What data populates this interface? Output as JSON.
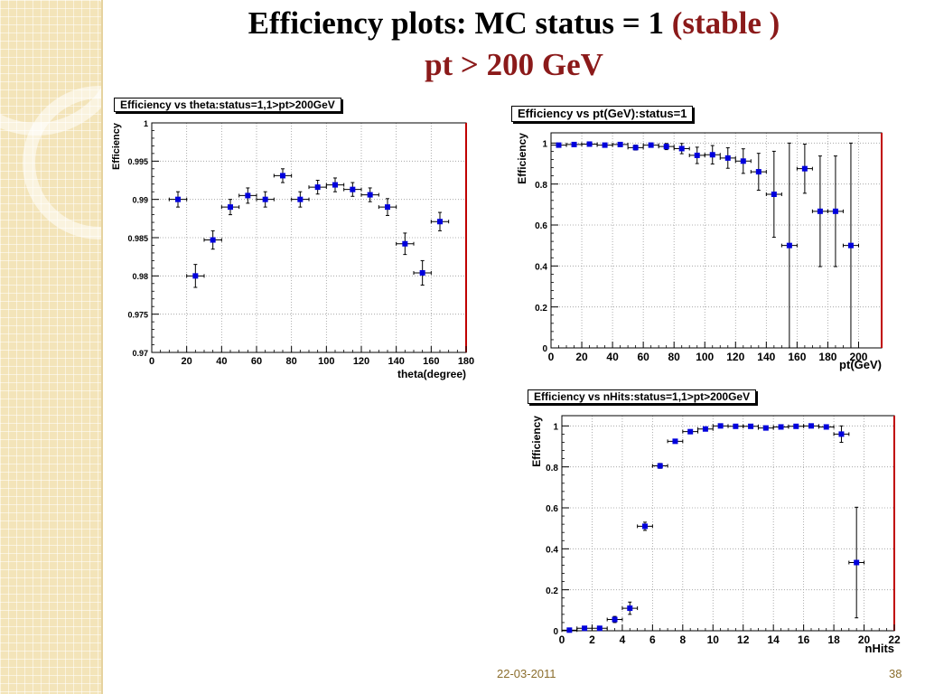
{
  "slide": {
    "title_main": "Efficiency plots: MC status = 1 ",
    "title_accent": "(stable )",
    "title_line2": "pt > 200 GeV",
    "footer_date": "22-03-2011",
    "footer_page": "38"
  },
  "colors": {
    "marker": "#0000dd",
    "title_accent": "#8b1a1a",
    "frame_right": "#c00000",
    "sidebar": "#f3e4b9"
  },
  "chart_data": [
    {
      "id": "theta",
      "type": "scatter",
      "title": "Efficiency vs theta:status=1,1>pt>200GeV",
      "xlabel": "theta(degree)",
      "ylabel": "Efficiency",
      "xlim": [
        0,
        180
      ],
      "ylim": [
        0.97,
        1.0
      ],
      "grid": true,
      "xticks": [
        0,
        20,
        40,
        60,
        80,
        100,
        120,
        140,
        160,
        180
      ],
      "xtick_labels": [
        "0",
        "20",
        "40",
        "60",
        "80",
        "100",
        "120",
        "140",
        "160",
        "180"
      ],
      "yticks": [
        0.97,
        0.975,
        0.98,
        0.985,
        0.99,
        0.995,
        1.0
      ],
      "ytick_labels": [
        "0.97",
        "0.975",
        "0.98",
        "0.985",
        "0.99",
        "0.995",
        "1"
      ],
      "x_halfwidth": 5,
      "x": [
        15,
        25,
        35,
        45,
        55,
        65,
        75,
        85,
        95,
        105,
        115,
        125,
        135,
        145,
        155,
        165
      ],
      "y": [
        0.99,
        0.98,
        0.9847,
        0.989,
        0.9905,
        0.99,
        0.9931,
        0.99,
        0.9916,
        0.9919,
        0.9913,
        0.9906,
        0.989,
        0.9842,
        0.9804,
        0.9871
      ],
      "yerr": [
        0.001,
        0.0015,
        0.0012,
        0.001,
        0.001,
        0.001,
        0.0009,
        0.001,
        0.0009,
        0.0009,
        0.0009,
        0.0009,
        0.0011,
        0.0014,
        0.0016,
        0.0012
      ]
    },
    {
      "id": "pt",
      "type": "scatter",
      "title": "Efficiency vs pt(GeV):status=1",
      "xlabel": "pt(GeV)",
      "ylabel": "Efficiency",
      "xlim": [
        0,
        215
      ],
      "ylim": [
        0,
        1.05
      ],
      "grid": true,
      "xticks": [
        0,
        20,
        40,
        60,
        80,
        100,
        120,
        140,
        160,
        180,
        200
      ],
      "xtick_labels": [
        "0",
        "20",
        "40",
        "60",
        "80",
        "100",
        "120",
        "140",
        "160",
        "180",
        "200"
      ],
      "yticks": [
        0,
        0.2,
        0.4,
        0.6,
        0.8,
        1.0
      ],
      "ytick_labels": [
        "0",
        "0.2",
        "0.4",
        "0.6",
        "0.8",
        "1"
      ],
      "x_halfwidth": 5,
      "x": [
        5,
        15,
        25,
        35,
        45,
        55,
        65,
        75,
        85,
        95,
        105,
        115,
        125,
        135,
        145,
        155,
        165,
        175,
        185,
        195
      ],
      "y": [
        0.99,
        0.993,
        0.995,
        0.99,
        0.993,
        0.978,
        0.99,
        0.983,
        0.973,
        0.94,
        0.943,
        0.927,
        0.912,
        0.86,
        0.75,
        0.5,
        0.875,
        0.667,
        0.667,
        0.5
      ],
      "yerr": [
        0.005,
        0.005,
        0.006,
        0.007,
        0.008,
        0.012,
        0.01,
        0.015,
        0.025,
        0.04,
        0.045,
        0.05,
        0.06,
        0.09,
        0.21,
        0.5,
        0.12,
        0.27,
        0.27,
        0.5
      ]
    },
    {
      "id": "nhits",
      "type": "scatter",
      "title": "Efficiency vs nHits:status=1,1>pt>200GeV",
      "xlabel": "nHits",
      "ylabel": "Efficiency",
      "xlim": [
        0,
        22
      ],
      "ylim": [
        0,
        1.05
      ],
      "grid": true,
      "xticks": [
        0,
        2,
        4,
        6,
        8,
        10,
        12,
        14,
        16,
        18,
        20,
        22
      ],
      "xtick_labels": [
        "0",
        "2",
        "4",
        "6",
        "8",
        "10",
        "12",
        "14",
        "16",
        "18",
        "20",
        "22"
      ],
      "yticks": [
        0,
        0.2,
        0.4,
        0.6,
        0.8,
        1.0
      ],
      "ytick_labels": [
        "0",
        "0.2",
        "0.4",
        "0.6",
        "0.8",
        "1"
      ],
      "x_halfwidth": 0.5,
      "x": [
        0.5,
        1.5,
        2.5,
        3.5,
        4.5,
        5.5,
        6.5,
        7.5,
        8.5,
        9.5,
        10.5,
        11.5,
        12.5,
        13.5,
        14.5,
        15.5,
        16.5,
        17.5,
        18.5,
        19.5
      ],
      "y": [
        0.003,
        0.012,
        0.012,
        0.055,
        0.11,
        0.51,
        0.805,
        0.925,
        0.972,
        0.985,
        1.0,
        0.998,
        0.998,
        0.99,
        0.995,
        0.998,
        1.0,
        0.995,
        0.96,
        0.333
      ],
      "yerr": [
        0.003,
        0.005,
        0.006,
        0.015,
        0.03,
        0.02,
        0.012,
        0.008,
        0.005,
        0.004,
        0.002,
        0.002,
        0.002,
        0.003,
        0.003,
        0.002,
        0.002,
        0.004,
        0.04,
        0.27
      ]
    }
  ]
}
